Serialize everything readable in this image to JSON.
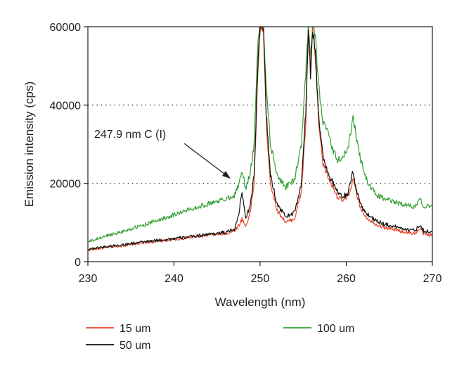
{
  "chart_data": {
    "type": "line",
    "title": "",
    "xlabel": "Wavelength (nm)",
    "ylabel": "Emission intensity (cps)",
    "xlim": [
      230,
      270
    ],
    "ylim": [
      0,
      60000
    ],
    "x_ticks": [
      230,
      240,
      250,
      260,
      270
    ],
    "y_ticks": [
      0,
      20000,
      40000,
      60000
    ],
    "dotted_gridlines_y": [
      20000,
      40000
    ],
    "legend_position": "bottom",
    "annotation": {
      "text": "247.9 nm C (I)",
      "x": 247.9,
      "y": 22000
    },
    "series": [
      {
        "name": "15 um",
        "color": "#e8462a",
        "points": [
          [
            230,
            3000
          ],
          [
            232,
            3600
          ],
          [
            234,
            4100
          ],
          [
            236,
            4700
          ],
          [
            238,
            5200
          ],
          [
            240,
            5700
          ],
          [
            242,
            6200
          ],
          [
            244,
            6800
          ],
          [
            246,
            7200
          ],
          [
            247,
            7800
          ],
          [
            247.6,
            9500
          ],
          [
            247.9,
            11000
          ],
          [
            248.3,
            9000
          ],
          [
            248.8,
            12000
          ],
          [
            249.3,
            20000
          ],
          [
            249.7,
            45000
          ],
          [
            250.0,
            60000
          ],
          [
            250.4,
            60000
          ],
          [
            250.7,
            36000
          ],
          [
            251.2,
            20000
          ],
          [
            252,
            13000
          ],
          [
            253,
            10000
          ],
          [
            254,
            11000
          ],
          [
            254.8,
            18000
          ],
          [
            255.3,
            35000
          ],
          [
            255.6,
            60000
          ],
          [
            255.85,
            48000
          ],
          [
            256.1,
            60000
          ],
          [
            256.4,
            52000
          ],
          [
            256.8,
            35000
          ],
          [
            257.3,
            25000
          ],
          [
            258,
            21000
          ],
          [
            258.5,
            19000
          ],
          [
            259,
            16500
          ],
          [
            259.6,
            15500
          ],
          [
            260.2,
            16500
          ],
          [
            260.8,
            21000
          ],
          [
            261.2,
            17000
          ],
          [
            261.8,
            13000
          ],
          [
            262.5,
            11000
          ],
          [
            263.5,
            9500
          ],
          [
            264.5,
            8700
          ],
          [
            266,
            8000
          ],
          [
            267,
            7500
          ],
          [
            268,
            7200
          ],
          [
            268.6,
            8500
          ],
          [
            269,
            7000
          ],
          [
            270,
            6800
          ]
        ]
      },
      {
        "name": "50 um",
        "color": "#111111",
        "points": [
          [
            230,
            3200
          ],
          [
            232,
            3800
          ],
          [
            234,
            4300
          ],
          [
            236,
            4900
          ],
          [
            238,
            5400
          ],
          [
            240,
            5900
          ],
          [
            242,
            6400
          ],
          [
            244,
            7000
          ],
          [
            246,
            7500
          ],
          [
            247,
            8200
          ],
          [
            247.6,
            13000
          ],
          [
            247.9,
            18000
          ],
          [
            248.3,
            11000
          ],
          [
            248.8,
            14000
          ],
          [
            249.3,
            22000
          ],
          [
            249.7,
            48000
          ],
          [
            250.0,
            60000
          ],
          [
            250.4,
            60000
          ],
          [
            250.7,
            38000
          ],
          [
            251.2,
            22000
          ],
          [
            252,
            14500
          ],
          [
            253,
            11500
          ],
          [
            254,
            12500
          ],
          [
            254.8,
            20000
          ],
          [
            255.3,
            38000
          ],
          [
            255.6,
            60000
          ],
          [
            255.85,
            48000
          ],
          [
            256.1,
            60000
          ],
          [
            256.4,
            54000
          ],
          [
            256.8,
            37000
          ],
          [
            257.3,
            27000
          ],
          [
            258,
            22000
          ],
          [
            258.5,
            20000
          ],
          [
            259,
            17500
          ],
          [
            259.6,
            16500
          ],
          [
            260.2,
            17500
          ],
          [
            260.8,
            23000
          ],
          [
            261.2,
            18000
          ],
          [
            261.8,
            14000
          ],
          [
            262.5,
            12000
          ],
          [
            263.5,
            10500
          ],
          [
            264.5,
            9500
          ],
          [
            266,
            8800
          ],
          [
            267,
            8300
          ],
          [
            268,
            8000
          ],
          [
            268.6,
            9500
          ],
          [
            269,
            7800
          ],
          [
            270,
            7600
          ]
        ]
      },
      {
        "name": "100 um",
        "color": "#33a033",
        "points": [
          [
            230,
            5000
          ],
          [
            232,
            6500
          ],
          [
            234,
            7700
          ],
          [
            236,
            9000
          ],
          [
            238,
            10500
          ],
          [
            240,
            12000
          ],
          [
            242,
            13500
          ],
          [
            244,
            14800
          ],
          [
            246,
            16000
          ],
          [
            247,
            17000
          ],
          [
            247.6,
            20000
          ],
          [
            247.9,
            23500
          ],
          [
            248.3,
            18500
          ],
          [
            248.8,
            22000
          ],
          [
            249.3,
            30000
          ],
          [
            249.7,
            55000
          ],
          [
            250.0,
            60000
          ],
          [
            250.4,
            60000
          ],
          [
            250.7,
            45000
          ],
          [
            251.2,
            30000
          ],
          [
            252,
            22000
          ],
          [
            253,
            19000
          ],
          [
            254,
            21000
          ],
          [
            254.8,
            30000
          ],
          [
            255.3,
            48000
          ],
          [
            255.6,
            60000
          ],
          [
            255.85,
            52000
          ],
          [
            256.1,
            60000
          ],
          [
            256.4,
            58000
          ],
          [
            256.8,
            45000
          ],
          [
            257.3,
            36000
          ],
          [
            258,
            32000
          ],
          [
            258.5,
            28000
          ],
          [
            259,
            26000
          ],
          [
            259.6,
            26500
          ],
          [
            260.2,
            29000
          ],
          [
            260.8,
            37000
          ],
          [
            261.2,
            31000
          ],
          [
            261.8,
            25000
          ],
          [
            262.5,
            20000
          ],
          [
            263.5,
            17000
          ],
          [
            264.5,
            16000
          ],
          [
            266,
            15000
          ],
          [
            267,
            14500
          ],
          [
            268,
            14000
          ],
          [
            268.6,
            16500
          ],
          [
            269,
            14000
          ],
          [
            270,
            14500
          ]
        ]
      }
    ]
  }
}
